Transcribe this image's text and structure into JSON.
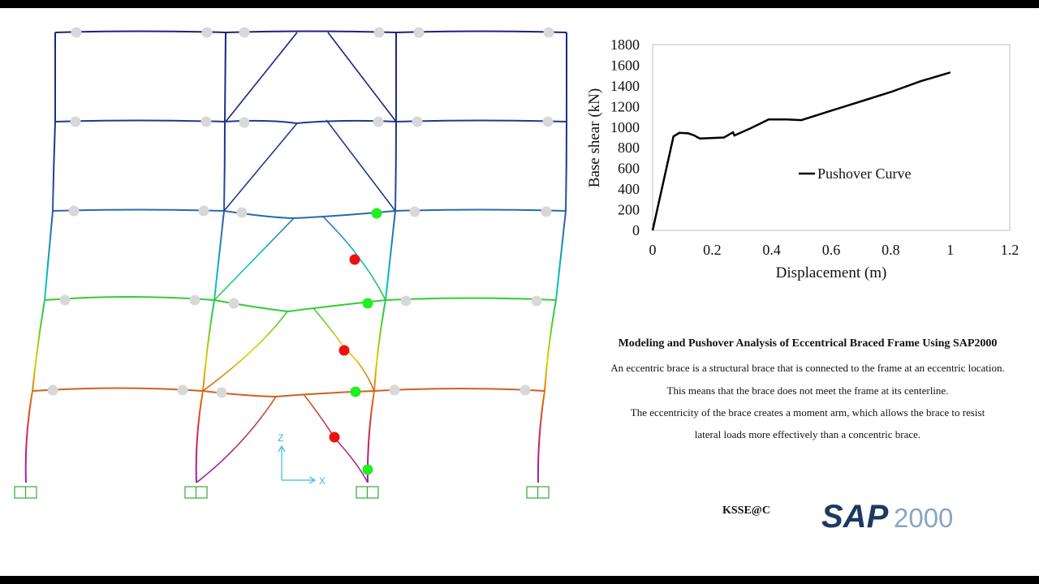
{
  "chart_data": {
    "type": "line",
    "title": "",
    "xlabel": "Displacement (m)",
    "ylabel": "Base shear (kN)",
    "xlim": [
      0,
      1.2
    ],
    "ylim": [
      0,
      1800
    ],
    "xticks": [
      0,
      0.2,
      0.4,
      0.6,
      0.8,
      1,
      1.2
    ],
    "xtick_labels": [
      "0",
      "0.2",
      "0.4",
      "0.6",
      "0.8",
      "1",
      "1.2"
    ],
    "yticks": [
      0,
      200,
      400,
      600,
      800,
      1000,
      1200,
      1400,
      1600,
      1800
    ],
    "ytick_labels": [
      "0",
      "200",
      "400",
      "600",
      "800",
      "1000",
      "1200",
      "1400",
      "1600",
      "1800"
    ],
    "grid": false,
    "legend_position": "center-right",
    "series": [
      {
        "name": "Pushover Curve",
        "color": "#000000",
        "x": [
          0,
          0.07,
          0.09,
          0.12,
          0.14,
          0.155,
          0.16,
          0.24,
          0.27,
          0.275,
          0.33,
          0.39,
          0.45,
          0.5,
          0.6,
          0.7,
          0.8,
          0.9,
          1.0
        ],
        "y": [
          0,
          910,
          945,
          940,
          920,
          895,
          890,
          900,
          950,
          920,
          990,
          1075,
          1075,
          1068,
          1160,
          1250,
          1340,
          1445,
          1530
        ]
      }
    ]
  },
  "info": {
    "title": "Modeling and Pushover Analysis of Eccentrical Braced Frame Using SAP2000",
    "lines": [
      "An eccentric brace is a structural brace that is connected to the frame at an eccentric location.",
      "This means that the brace does not meet the frame at its centerline.",
      "The eccentricity of the brace creates a moment arm, which allows the brace to resist",
      "lateral loads more effectively than a concentric brace."
    ]
  },
  "ksse_label": "KSSE@C",
  "logo": {
    "sap": "SAP",
    "version": "2000"
  },
  "axis_labels": {
    "z": "Z",
    "x": "X"
  },
  "colors": {
    "floor5": "#1a237e",
    "floor4": "#1f3a8f",
    "floor3": "#2a6aaa",
    "floor2": "#33cc33",
    "floor1": "#d06020",
    "base": "#9b1fb0",
    "hinge_grey": "#d8d8d8",
    "hinge_green": "#22ee22",
    "hinge_red": "#ee1111",
    "support": "#33aa33",
    "axis": "#33bbdd",
    "logo_dark": "#1b3a5f",
    "logo_light": "#8aa6c1"
  }
}
